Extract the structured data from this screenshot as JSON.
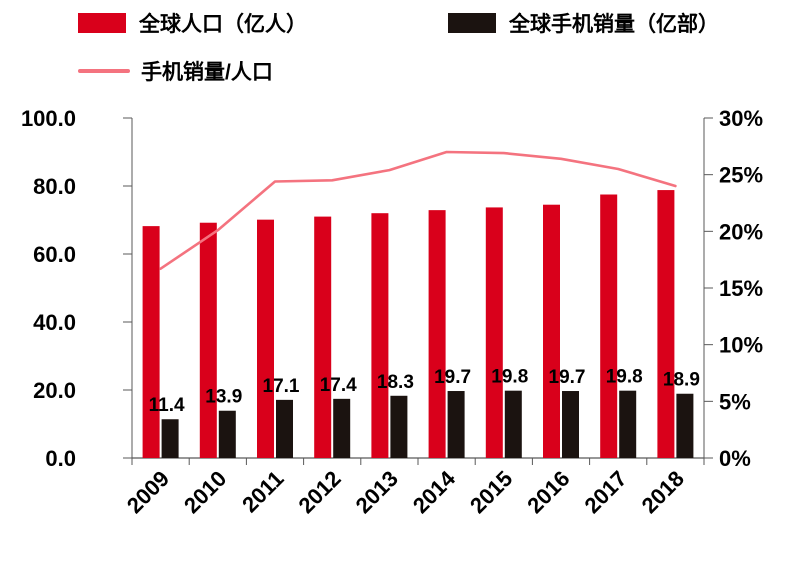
{
  "legend": {
    "population": {
      "label": "全球人口（亿人）",
      "color": "#d9001b"
    },
    "sales": {
      "label": "全球手机销量（亿部）",
      "color": "#1b1310"
    },
    "ratio": {
      "label": "手机销量/人口",
      "color": "#f4737f"
    }
  },
  "chart_data": {
    "type": "bar+line combo",
    "title": "",
    "categories": [
      "2009",
      "2010",
      "2011",
      "2012",
      "2013",
      "2014",
      "2015",
      "2016",
      "2017",
      "2018"
    ],
    "series": [
      {
        "name": "全球人口（亿人）",
        "type": "bar",
        "axis": "left",
        "color": "#d9001b",
        "values": [
          68.2,
          69.2,
          70.1,
          71.0,
          72.0,
          72.9,
          73.7,
          74.5,
          77.5,
          78.8
        ]
      },
      {
        "name": "全球手机销量（亿部）",
        "type": "bar",
        "axis": "left",
        "color": "#1b1310",
        "data_labels": true,
        "values": [
          11.4,
          13.9,
          17.1,
          17.4,
          18.3,
          19.7,
          19.8,
          19.7,
          19.8,
          18.9
        ]
      },
      {
        "name": "手机销量/人口",
        "type": "line",
        "axis": "right",
        "color": "#f4737f",
        "values": [
          16.7,
          20.1,
          24.4,
          24.5,
          25.4,
          27.0,
          26.9,
          26.4,
          25.5,
          24.0
        ]
      }
    ],
    "left_axis": {
      "min": 0,
      "max": 100,
      "ticks": [
        {
          "v": 0,
          "label": "0.0"
        },
        {
          "v": 20,
          "label": "20.0"
        },
        {
          "v": 40,
          "label": "40.0"
        },
        {
          "v": 60,
          "label": "60.0"
        },
        {
          "v": 80,
          "label": "80.0"
        },
        {
          "v": 100,
          "label": "100.0"
        }
      ]
    },
    "right_axis": {
      "min": 0,
      "max": 30,
      "ticks": [
        {
          "v": 0,
          "label": "0%"
        },
        {
          "v": 5,
          "label": "5%"
        },
        {
          "v": 10,
          "label": "10%"
        },
        {
          "v": 15,
          "label": "15%"
        },
        {
          "v": 20,
          "label": "20%"
        },
        {
          "v": 25,
          "label": "25%"
        },
        {
          "v": 30,
          "label": "30%"
        }
      ]
    },
    "grid": false,
    "legend_position": "top-left"
  }
}
